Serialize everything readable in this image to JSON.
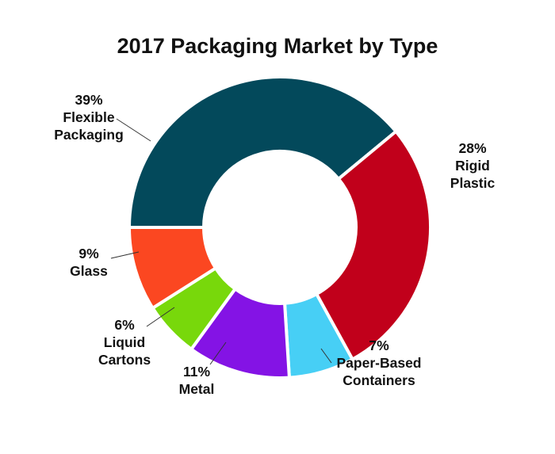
{
  "chart_data": {
    "type": "pie",
    "variant": "donut",
    "title": "2017 Packaging Market by Type",
    "legend": "none",
    "slices": [
      {
        "label_lines": [
          "Flexible",
          "Packaging"
        ],
        "value": 39,
        "value_label": "39%",
        "color": "#03495b"
      },
      {
        "label_lines": [
          "Rigid",
          "Plastic"
        ],
        "value": 28,
        "value_label": "28%",
        "color": "#c1001b"
      },
      {
        "label_lines": [
          "Paper-Based",
          "Containers"
        ],
        "value": 7,
        "value_label": "7%",
        "color": "#47cff5"
      },
      {
        "label_lines": [
          "Metal"
        ],
        "value": 11,
        "value_label": "11%",
        "color": "#8413e5"
      },
      {
        "label_lines": [
          "Liquid",
          "Cartons"
        ],
        "value": 6,
        "value_label": "6%",
        "color": "#78d80b"
      },
      {
        "label_lines": [
          "Glass"
        ],
        "value": 9,
        "value_label": "9%",
        "color": "#fb4721"
      }
    ]
  }
}
